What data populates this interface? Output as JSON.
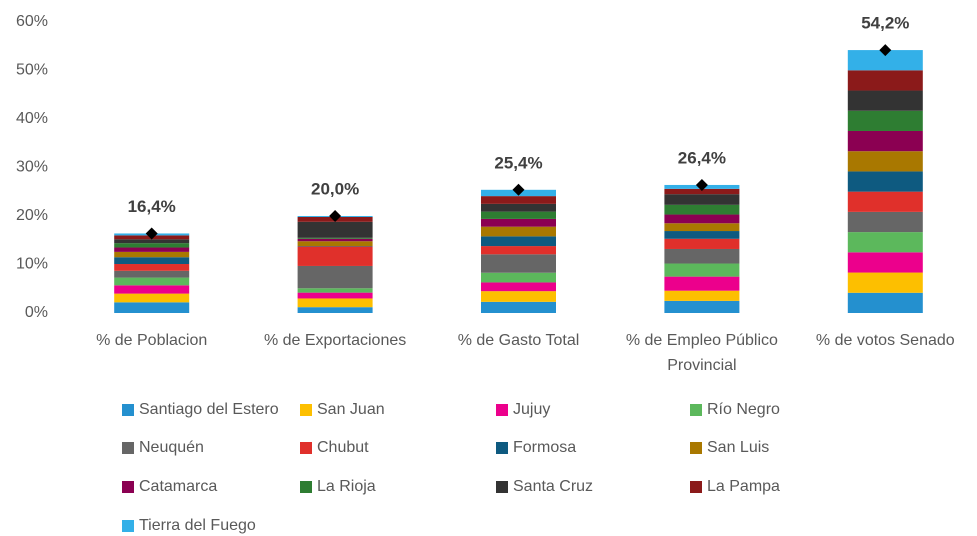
{
  "chart_data": {
    "type": "stacked_bar",
    "categories": [
      "% de Poblacion",
      "% de Exportaciones",
      "% de Gasto Total",
      "% de Empleo Público Provincial",
      "% de votos Senado"
    ],
    "series": [
      {
        "name": "Santiago del Estero",
        "color": "#2490cf",
        "values": [
          2.2,
          1.2,
          2.3,
          2.5,
          4.17
        ]
      },
      {
        "name": "San Juan",
        "color": "#fdbf00",
        "values": [
          1.8,
          1.8,
          2.2,
          2.1,
          4.17
        ]
      },
      {
        "name": "Jujuy",
        "color": "#ec008c",
        "values": [
          1.7,
          1.2,
          1.8,
          2.9,
          4.17
        ]
      },
      {
        "name": "Río Negro",
        "color": "#5cb85c",
        "values": [
          1.6,
          0.9,
          2.0,
          2.7,
          4.17
        ]
      },
      {
        "name": "Neuquén",
        "color": "#666666",
        "values": [
          1.4,
          4.6,
          3.8,
          3.0,
          4.17
        ]
      },
      {
        "name": "Chubut",
        "color": "#e0302b",
        "values": [
          1.4,
          4.0,
          1.7,
          2.1,
          4.17
        ]
      },
      {
        "name": "Formosa",
        "color": "#0e5a80",
        "values": [
          1.4,
          0.1,
          2.0,
          1.6,
          4.17
        ]
      },
      {
        "name": "San Luis",
        "color": "#a97800",
        "values": [
          1.1,
          1.0,
          2.0,
          1.6,
          4.17
        ]
      },
      {
        "name": "Catamarca",
        "color": "#8b0052",
        "values": [
          0.9,
          0.5,
          1.6,
          1.8,
          4.17
        ]
      },
      {
        "name": "La Rioja",
        "color": "#2e7d32",
        "values": [
          0.9,
          0.2,
          1.5,
          2.0,
          4.17
        ]
      },
      {
        "name": "Santa Cruz",
        "color": "#333333",
        "values": [
          0.8,
          3.3,
          1.6,
          2.2,
          4.17
        ]
      },
      {
        "name": "La Pampa",
        "color": "#8b1a1a",
        "values": [
          0.8,
          1.0,
          1.6,
          1.1,
          4.17
        ]
      },
      {
        "name": "Tierra del Fuego",
        "color": "#33b0e8",
        "values": [
          0.4,
          0.2,
          1.3,
          0.8,
          4.17
        ]
      }
    ],
    "totals": [
      16.4,
      20.0,
      25.4,
      26.4,
      54.2
    ],
    "total_labels": [
      "16,4%",
      "20,0%",
      "25,4%",
      "26,4%",
      "54,2%"
    ],
    "total_marker_color": "#000000",
    "ylim": [
      0,
      60
    ],
    "yticks": [
      {
        "value": 0,
        "label": "0%"
      },
      {
        "value": 10,
        "label": "10%"
      },
      {
        "value": 20,
        "label": "20%"
      },
      {
        "value": 30,
        "label": "30%"
      },
      {
        "value": 40,
        "label": "40%"
      },
      {
        "value": 50,
        "label": "50%"
      },
      {
        "value": 60,
        "label": "60%"
      }
    ],
    "grid": false
  }
}
